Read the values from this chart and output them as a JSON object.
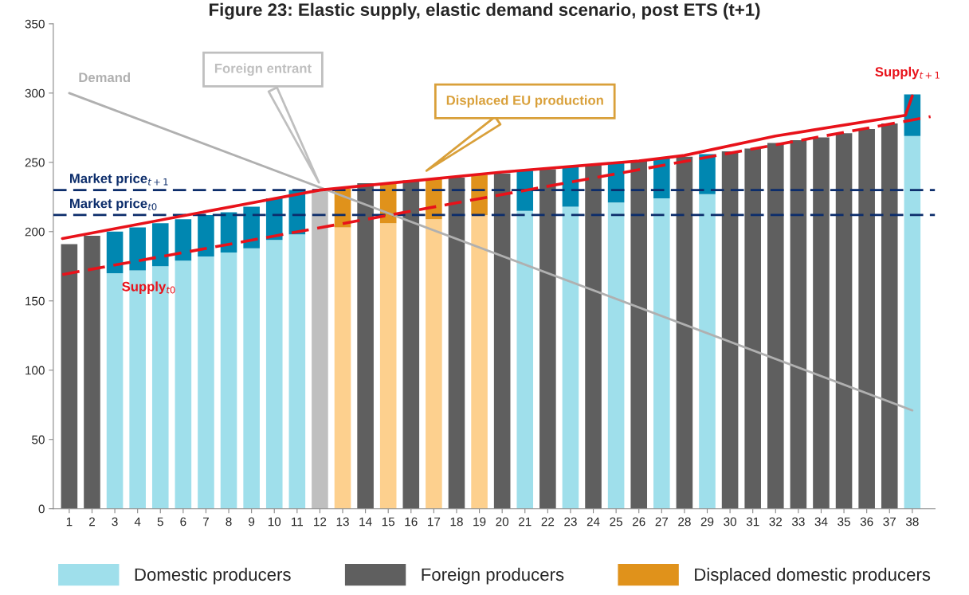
{
  "chart_data": {
    "type": "bar",
    "title": "Figure 23: Elastic supply, elastic demand scenario, post ETS (t+1)",
    "stacked": true,
    "x": [
      1,
      2,
      3,
      4,
      5,
      6,
      7,
      8,
      9,
      10,
      11,
      12,
      13,
      14,
      15,
      16,
      17,
      18,
      19,
      20,
      21,
      22,
      23,
      24,
      25,
      26,
      27,
      28,
      29,
      30,
      31,
      32,
      33,
      34,
      35,
      36,
      37,
      38
    ],
    "xlim": [
      0.3,
      39
    ],
    "xticks": [
      1,
      2,
      3,
      4,
      5,
      6,
      7,
      8,
      9,
      10,
      11,
      12,
      13,
      14,
      15,
      16,
      17,
      18,
      19,
      20,
      21,
      22,
      23,
      24,
      25,
      26,
      27,
      28,
      29,
      30,
      31,
      32,
      33,
      34,
      35,
      36,
      37,
      38
    ],
    "ylim": [
      0,
      350
    ],
    "yticks": [
      0,
      50,
      100,
      150,
      200,
      250,
      300,
      350
    ],
    "grid": false,
    "legend": "bottom",
    "series": [
      {
        "name": "Domestic producers",
        "color": "#9fdfeb",
        "values": [
          null,
          null,
          170,
          172,
          175,
          179,
          182,
          185,
          188,
          194,
          198,
          null,
          null,
          null,
          null,
          null,
          null,
          null,
          null,
          null,
          215,
          null,
          218,
          null,
          221,
          null,
          224,
          null,
          227,
          null,
          null,
          null,
          null,
          null,
          null,
          null,
          null,
          269
        ]
      },
      {
        "name": "Foreign producers",
        "color": "#5f5f5f",
        "values": [
          191,
          197,
          null,
          null,
          null,
          null,
          null,
          null,
          null,
          null,
          null,
          null,
          null,
          235,
          null,
          237,
          null,
          239,
          null,
          242,
          null,
          245,
          null,
          248,
          null,
          251,
          null,
          254,
          null,
          258,
          260,
          264,
          266,
          268,
          271,
          274,
          278,
          null
        ]
      },
      {
        "color": "#bfbfbf",
        "values": [
          null,
          null,
          null,
          null,
          null,
          null,
          null,
          null,
          null,
          null,
          null,
          230,
          null,
          null,
          null,
          null,
          null,
          null,
          null,
          null,
          null,
          null,
          null,
          null,
          null,
          null,
          null,
          null,
          null,
          null,
          null,
          null,
          null,
          null,
          null,
          null,
          null,
          null
        ]
      },
      {
        "color": "#fdd08e",
        "values": [
          null,
          null,
          null,
          null,
          null,
          null,
          null,
          null,
          null,
          null,
          null,
          null,
          203,
          null,
          206,
          null,
          209,
          null,
          212,
          null,
          null,
          null,
          null,
          null,
          null,
          null,
          null,
          null,
          null,
          null,
          null,
          null,
          null,
          null,
          null,
          null,
          null,
          null
        ]
      },
      {
        "color": "#0087b1",
        "values": [
          null,
          null,
          30,
          31,
          31,
          30,
          30,
          29,
          30,
          30,
          32,
          null,
          null,
          null,
          null,
          null,
          null,
          null,
          null,
          null,
          29,
          null,
          29,
          null,
          29,
          null,
          29,
          null,
          29,
          null,
          null,
          null,
          null,
          null,
          null,
          null,
          null,
          30
        ]
      },
      {
        "name": "Displaced domestic producers",
        "color": "#e0921b",
        "values": [
          null,
          null,
          null,
          null,
          null,
          null,
          null,
          null,
          null,
          null,
          null,
          null,
          28,
          null,
          29,
          null,
          29,
          null,
          29,
          null,
          null,
          null,
          null,
          null,
          null,
          null,
          null,
          null,
          null,
          null,
          null,
          null,
          null,
          null,
          null,
          null,
          null,
          null
        ]
      },
      {
        "name": "Demand",
        "type": "line",
        "color": "#b0b0b0",
        "line_style": "solid",
        "x": [
          1,
          38
        ],
        "values": [
          300,
          71
        ]
      },
      {
        "name": "Supply$_{t0}$",
        "type": "line",
        "color": "#e8121a",
        "line_style": "dashed",
        "x": [
          0.7,
          38.8
        ],
        "values": [
          169,
          283
        ]
      },
      {
        "name": "Supply$_{t+1}$",
        "type": "line",
        "color": "#e8121a",
        "line_style": "solid",
        "x": [
          0.7,
          12,
          20,
          26,
          28,
          32,
          37.7,
          38
        ],
        "values": [
          195,
          230,
          243,
          251,
          255,
          269,
          284,
          298
        ]
      }
    ],
    "ref_lines": [
      {
        "axis": "y",
        "value": 230,
        "label": "Market price$_{t+1}$",
        "color": "#0c2d6b",
        "line_style": "dashed"
      },
      {
        "axis": "y",
        "value": 212,
        "label": "Market price$_{t0}$",
        "color": "#0c2d6b",
        "line_style": "dashed"
      }
    ],
    "annotations": [
      "Foreign entrant",
      "Displaced EU production"
    ]
  }
}
